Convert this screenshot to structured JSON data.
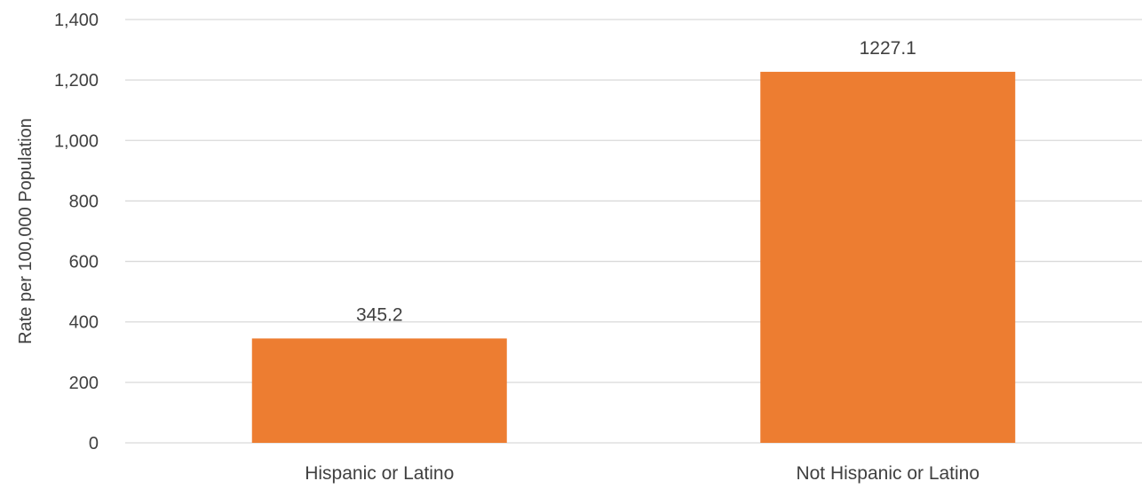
{
  "chart_data": {
    "type": "bar",
    "title": "",
    "xlabel": "",
    "ylabel": "Rate per 100,000 Population",
    "categories": [
      "Hispanic or Latino",
      "Not Hispanic or Latino"
    ],
    "values": [
      345.2,
      1227.1
    ],
    "value_labels": [
      "345.2",
      "1227.1"
    ],
    "ylim": [
      0,
      1400
    ],
    "yticks": [
      0,
      200,
      400,
      600,
      800,
      1000,
      1200,
      1400
    ],
    "ytick_labels": [
      "0",
      "200",
      "400",
      "600",
      "800",
      "1,000",
      "1,200",
      "1,400"
    ],
    "grid": true,
    "legend": "none",
    "colors": {
      "bar": "#ED7D31",
      "grid": "#D9D9D9",
      "text": "#404040"
    }
  }
}
